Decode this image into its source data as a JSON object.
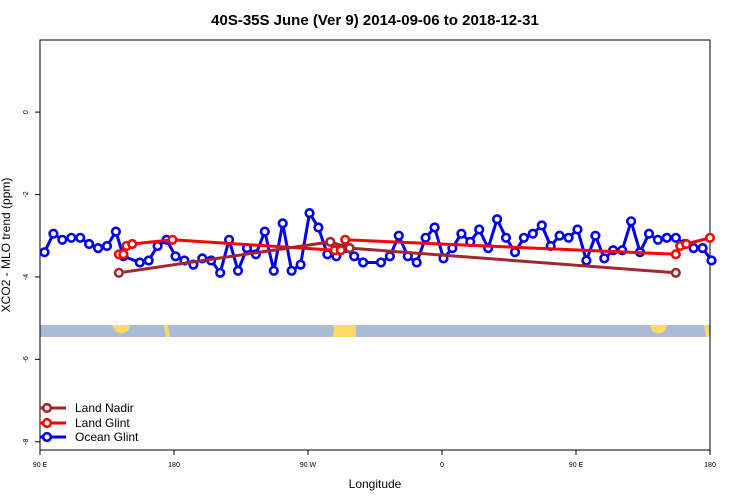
{
  "chart_data": {
    "type": "scatter",
    "title": "40S-35S June (Ver 9)   2014-09-06 to 2018-12-31",
    "xlabel": "Longitude",
    "ylabel": "XCO2 - MLO trend (ppm)",
    "x_ticks": [
      {
        "value": 90,
        "label": "90 E"
      },
      {
        "value": 180,
        "label": "180"
      },
      {
        "value": 270,
        "label": "90 W"
      },
      {
        "value": 360,
        "label": "0"
      },
      {
        "value": 450,
        "label": "90 E"
      },
      {
        "value": 540,
        "label": "180"
      }
    ],
    "y_ticks": [
      0,
      -2,
      -4,
      -6,
      -8
    ],
    "xlim": [
      90,
      540
    ],
    "ylim": [
      -8.2,
      1.75
    ],
    "grid": false,
    "legend": "bottom-left",
    "colors": {
      "land_nadir": "#a0282d",
      "land_glint": "#ff0000",
      "ocean_glint": "#0000ee",
      "map_ocean": "#a8bcd8",
      "map_land": "#ffd966"
    },
    "series": [
      {
        "name": "Ocean Glint",
        "connected": true,
        "x": [
          93,
          99,
          105,
          111,
          117,
          123,
          129,
          135,
          141,
          146,
          157,
          163,
          169,
          175,
          181,
          187,
          193,
          199,
          205,
          211,
          217,
          223,
          229,
          235,
          241,
          247,
          253,
          259,
          265,
          271,
          277,
          283,
          289,
          295,
          301,
          307,
          319,
          325,
          331,
          337,
          343,
          349,
          355,
          361,
          367,
          373,
          379,
          385,
          391,
          397,
          403,
          409,
          415,
          421,
          427,
          433,
          439,
          445,
          451,
          457,
          463,
          469,
          475,
          481,
          487,
          493,
          499,
          505,
          511,
          517,
          523,
          529,
          535,
          541
        ],
        "y": [
          -3.4,
          -2.95,
          -3.1,
          -3.05,
          -3.05,
          -3.2,
          -3.3,
          -3.25,
          -2.9,
          -3.5,
          -3.65,
          -3.6,
          -3.25,
          -3.1,
          -3.5,
          -3.6,
          -3.7,
          -3.55,
          -3.6,
          -3.9,
          -3.1,
          -3.85,
          -3.3,
          -3.45,
          -2.9,
          -3.85,
          -2.7,
          -3.85,
          -3.7,
          -2.45,
          -2.8,
          -3.45,
          -3.5,
          -3.3,
          -3.5,
          -3.65,
          -3.65,
          -3.5,
          -3.0,
          -3.5,
          -3.65,
          -3.05,
          -2.8,
          -3.55,
          -3.3,
          -2.95,
          -3.15,
          -2.85,
          -3.3,
          -2.6,
          -3.05,
          -3.4,
          -3.05,
          -2.95,
          -2.75,
          -3.25,
          -3.0,
          -3.05,
          -2.85,
          -3.6,
          -3.0,
          -3.55,
          -3.35,
          -3.35,
          -2.65,
          -3.4,
          -2.95,
          -3.1,
          -3.05,
          -3.05,
          -3.2,
          -3.3,
          -3.3,
          -3.6
        ]
      },
      {
        "name": "Land Glint",
        "connected": true,
        "x": [
          143,
          146,
          148,
          152,
          179,
          288,
          292,
          295,
          517,
          520,
          524,
          540
        ],
        "y": [
          -3.45,
          -3.45,
          -3.25,
          -3.2,
          -3.1,
          -3.35,
          -3.35,
          -3.1,
          -3.45,
          -3.25,
          -3.2,
          -3.05
        ]
      },
      {
        "name": "Land Nadir",
        "connected": true,
        "x": [
          143,
          285,
          298,
          517
        ],
        "y": [
          -3.9,
          -3.15,
          -3.3,
          -3.9
        ]
      }
    ]
  }
}
